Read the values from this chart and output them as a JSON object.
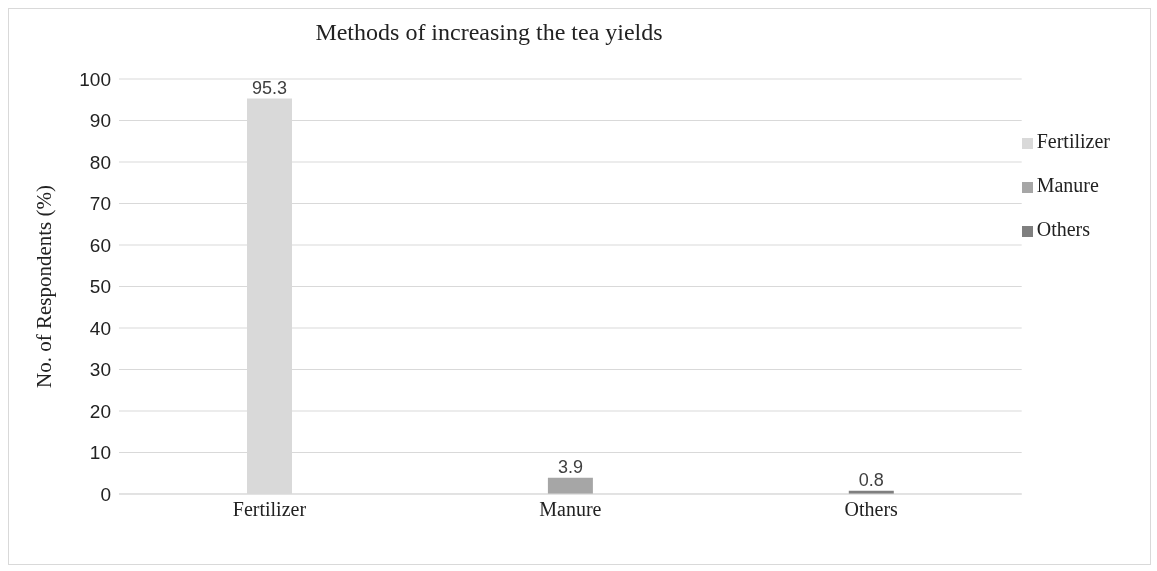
{
  "chart_data": {
    "type": "bar",
    "title": "Methods of increasing the tea yields",
    "ylabel": "No. of Respondents (%)",
    "categories": [
      "Fertilizer",
      "Manure",
      "Others"
    ],
    "series": [
      {
        "name": "Fertilizer",
        "color": "#d9d9d9",
        "values": [
          95.3,
          null,
          null
        ]
      },
      {
        "name": "Manure",
        "color": "#a6a6a6",
        "values": [
          null,
          3.9,
          null
        ]
      },
      {
        "name": "Others",
        "color": "#7f7f7f",
        "values": [
          null,
          null,
          0.8
        ]
      }
    ],
    "stacked": true,
    "ylim": [
      0,
      100
    ],
    "yticks": [
      0,
      10,
      20,
      30,
      40,
      50,
      60,
      70,
      80,
      90,
      100
    ],
    "grid": "y",
    "legend": "right",
    "data_labels": true
  }
}
